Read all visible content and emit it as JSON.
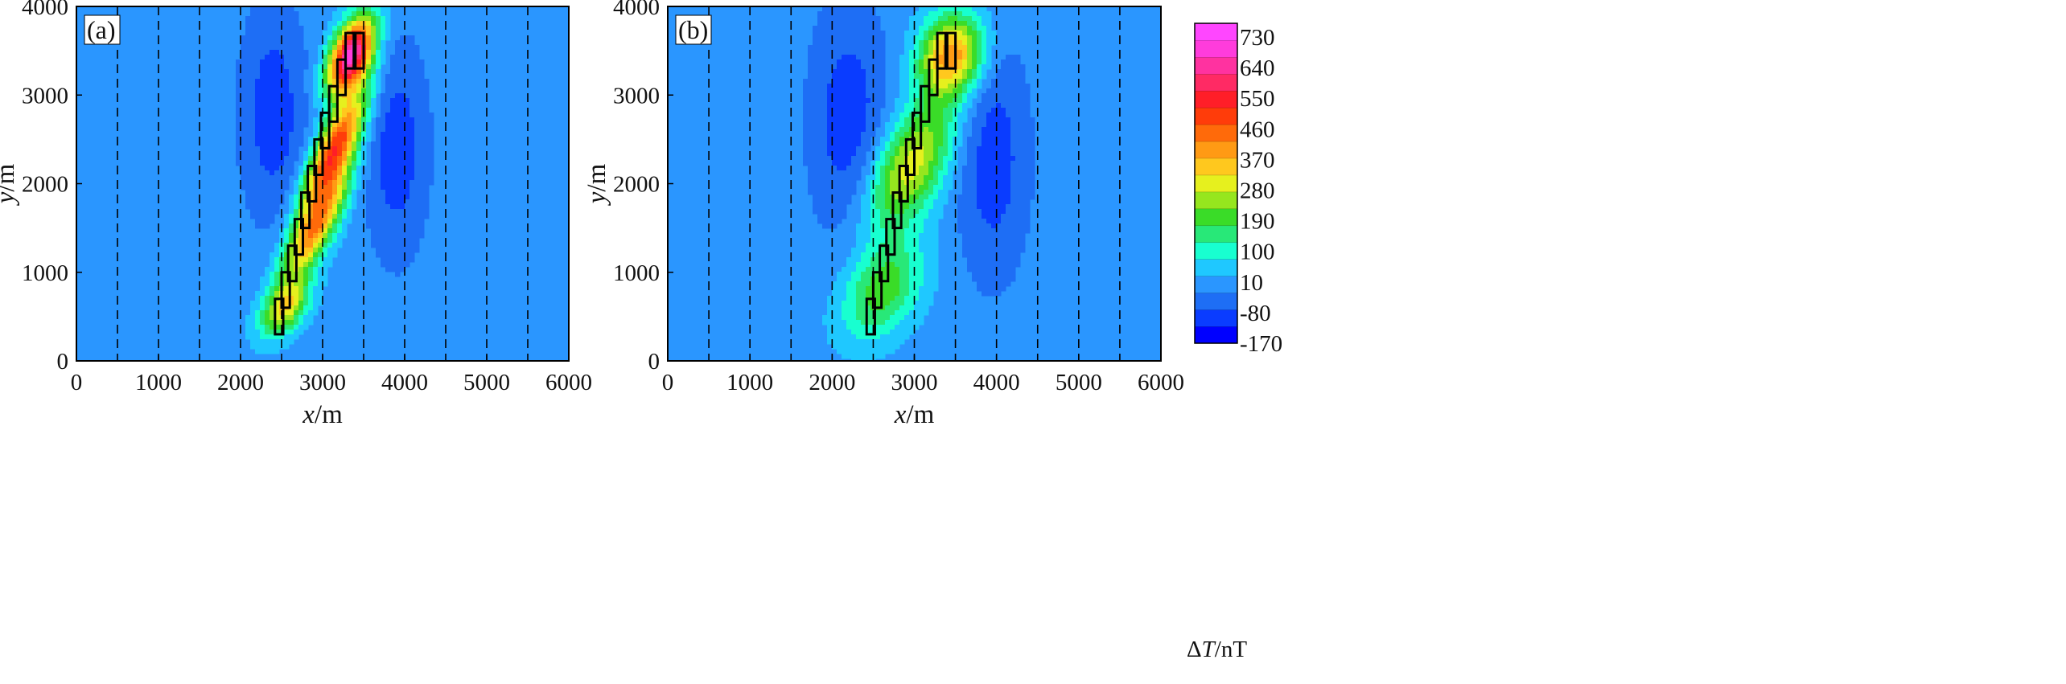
{
  "chart_data": {
    "type": "heatmap",
    "colorbar": {
      "ticks": [
        730,
        640,
        550,
        460,
        370,
        280,
        190,
        100,
        10,
        -80,
        -170
      ],
      "tick_labels": [
        "730",
        "640",
        "550",
        "460",
        "370",
        "280",
        "190",
        "100",
        "10",
        "-80",
        "-170"
      ],
      "unit_prefix": "Δ",
      "unit_italic": "T",
      "unit_suffix": "/nT",
      "range": [
        -170,
        770
      ],
      "colors": [
        "#0000ff",
        "#0a3cff",
        "#1e6ef5",
        "#2a96ff",
        "#1fc8ff",
        "#18ffd0",
        "#28e878",
        "#3adc28",
        "#96e61e",
        "#e6f01e",
        "#ffc81e",
        "#ff9a14",
        "#ff6a0a",
        "#ff3c0a",
        "#ff1e28",
        "#ff2a64",
        "#ff32a0",
        "#ff3cdc",
        "#ff46ff"
      ]
    },
    "x_ticks": [
      0,
      1000,
      2000,
      3000,
      4000,
      5000,
      6000
    ],
    "y_ticks": [
      0,
      1000,
      2000,
      3000,
      4000
    ],
    "xlim": [
      0,
      6000
    ],
    "ylim": [
      0,
      4000
    ],
    "profile_lines_x": [
      500,
      1000,
      1500,
      2000,
      2500,
      3000,
      3500,
      4000,
      4500,
      5000,
      5500
    ],
    "panels": [
      {
        "label": "(a)",
        "xlabel_italic": "x",
        "xlabel_rest": "/m",
        "ylabel_italic": "y",
        "ylabel_rest": "/m",
        "anomaly": {
          "background": 10,
          "blobs": [
            {
              "x": 2550,
              "y": 600,
              "peak": 300,
              "sx": 150,
              "sy": 250,
              "angle": 50
            },
            {
              "x": 2900,
              "y": 1500,
              "peak": 420,
              "sx": 150,
              "sy": 500,
              "angle": 60
            },
            {
              "x": 3150,
              "y": 2400,
              "peak": 500,
              "sx": 150,
              "sy": 500,
              "angle": 62
            },
            {
              "x": 3350,
              "y": 3450,
              "peak": 700,
              "sx": 160,
              "sy": 320,
              "angle": 65
            }
          ],
          "negative_lobes": [
            {
              "x": 2400,
              "y": 2800,
              "peak": -110,
              "sx": 300,
              "sy": 900
            },
            {
              "x": 3900,
              "y": 2400,
              "peak": -110,
              "sx": 280,
              "sy": 900
            }
          ]
        }
      },
      {
        "label": "(b)",
        "xlabel_italic": "x",
        "xlabel_rest": "/m",
        "ylabel_italic": "y",
        "ylabel_rest": "/m",
        "anomaly": {
          "background": 10,
          "blobs": [
            {
              "x": 2600,
              "y": 800,
              "peak": 210,
              "sx": 280,
              "sy": 420,
              "angle": 55
            },
            {
              "x": 2950,
              "y": 2200,
              "peak": 300,
              "sx": 280,
              "sy": 560,
              "angle": 60
            },
            {
              "x": 3450,
              "y": 3450,
              "peak": 410,
              "sx": 260,
              "sy": 330,
              "angle": 70
            }
          ],
          "negative_lobes": [
            {
              "x": 2200,
              "y": 2700,
              "peak": -110,
              "sx": 350,
              "sy": 1000
            },
            {
              "x": 3950,
              "y": 2300,
              "peak": -110,
              "sx": 320,
              "sy": 1000
            }
          ]
        }
      }
    ],
    "bodies": [
      [
        2420,
        300,
        2520,
        700
      ],
      [
        2500,
        600,
        2600,
        1000
      ],
      [
        2580,
        900,
        2680,
        1300
      ],
      [
        2660,
        1200,
        2760,
        1600
      ],
      [
        2740,
        1500,
        2840,
        1900
      ],
      [
        2820,
        1800,
        2920,
        2200
      ],
      [
        2900,
        2100,
        3000,
        2500
      ],
      [
        2980,
        2400,
        3080,
        2800
      ],
      [
        3080,
        2700,
        3180,
        3100
      ],
      [
        3180,
        3000,
        3280,
        3400
      ],
      [
        3280,
        3300,
        3380,
        3700
      ],
      [
        3400,
        3300,
        3500,
        3700
      ]
    ]
  }
}
